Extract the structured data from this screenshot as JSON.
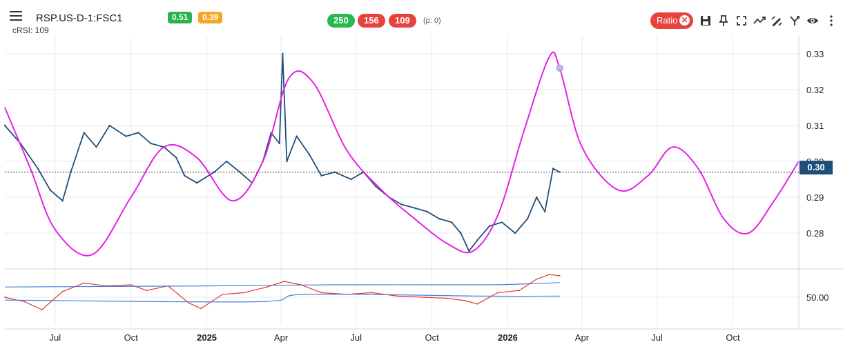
{
  "header": {
    "symbol": "RSP.US-D-1:FSC1",
    "indicator_label": "cRSI: 109",
    "badge_a": "0.51",
    "badge_b": "0.39",
    "count_a": "250",
    "count_b": "156",
    "count_c": "109",
    "p_note": "(p: 0)",
    "ratio_label": "Ratio",
    "ratio_close": "✕"
  },
  "colors": {
    "price_line": "#1f4e79",
    "cycle_line": "#e61fe6",
    "crsi_line": "#e03a2a",
    "band_line": "#4a7fd9",
    "badge_green": "#2bb24c",
    "badge_orange": "#f5a623",
    "pill_green": "#27b84f",
    "pill_red": "#e8423f"
  },
  "toolbar_icons": [
    "save-icon",
    "pin-icon",
    "fullscreen-icon",
    "trend-icon",
    "draw-icon",
    "fork-icon",
    "eye-icon"
  ],
  "chart_data": [
    {
      "type": "line",
      "title": "",
      "xlabel": "",
      "ylabel": "",
      "x_ticks": [
        "Jul",
        "Oct",
        "2025",
        "Apr",
        "Jul",
        "Oct",
        "2026",
        "Apr",
        "Jul",
        "Oct"
      ],
      "y_ticks": [
        "0.33",
        "0.32",
        "0.31",
        "0.30",
        "0.29",
        "0.28"
      ],
      "ylim": [
        0.27,
        0.335
      ],
      "current_value_label": "0.30",
      "current_value": 0.297,
      "series": [
        {
          "role": "price",
          "x": [
            "2024-05-01",
            "2024-05-20",
            "2024-06-10",
            "2024-06-25",
            "2024-07-10",
            "2024-07-20",
            "2024-08-05",
            "2024-08-20",
            "2024-09-05",
            "2024-09-25",
            "2024-10-10",
            "2024-10-25",
            "2024-11-10",
            "2024-11-25",
            "2024-12-05",
            "2024-12-20",
            "2025-01-10",
            "2025-01-25",
            "2025-02-10",
            "2025-02-25",
            "2025-03-10",
            "2025-03-20",
            "2025-03-30",
            "2025-04-03",
            "2025-04-08",
            "2025-04-20",
            "2025-05-05",
            "2025-05-20",
            "2025-06-05",
            "2025-06-25",
            "2025-07-10",
            "2025-07-25",
            "2025-08-10",
            "2025-08-25",
            "2025-09-10",
            "2025-09-25",
            "2025-10-10",
            "2025-10-25",
            "2025-11-05",
            "2025-11-15",
            "2025-11-25",
            "2025-12-10",
            "2025-12-25",
            "2026-01-10",
            "2026-01-25",
            "2026-02-05",
            "2026-02-15",
            "2026-02-25",
            "2026-03-05"
          ],
          "values": [
            0.31,
            0.305,
            0.298,
            0.292,
            0.289,
            0.297,
            0.308,
            0.304,
            0.31,
            0.307,
            0.308,
            0.305,
            0.304,
            0.301,
            0.296,
            0.294,
            0.297,
            0.3,
            0.297,
            0.294,
            0.3,
            0.308,
            0.305,
            0.33,
            0.3,
            0.307,
            0.302,
            0.296,
            0.297,
            0.295,
            0.297,
            0.293,
            0.29,
            0.288,
            0.287,
            0.286,
            0.284,
            0.283,
            0.28,
            0.275,
            0.278,
            0.282,
            0.283,
            0.28,
            0.284,
            0.29,
            0.286,
            0.298,
            0.297
          ]
        },
        {
          "role": "cycle",
          "x": [
            "2024-05-01",
            "2024-06-01",
            "2024-07-01",
            "2024-08-15",
            "2024-10-01",
            "2024-11-10",
            "2024-12-20",
            "2025-02-01",
            "2025-03-10",
            "2025-04-10",
            "2025-05-10",
            "2025-06-20",
            "2025-08-01",
            "2025-09-10",
            "2025-10-20",
            "2025-11-20",
            "2025-12-20",
            "2026-01-20",
            "2026-02-20",
            "2026-03-05",
            "2026-04-01",
            "2026-05-15",
            "2026-06-20",
            "2026-07-20",
            "2026-08-20",
            "2026-09-20",
            "2026-10-20",
            "2026-11-20",
            "2026-12-20"
          ],
          "values": [
            0.315,
            0.298,
            0.281,
            0.274,
            0.29,
            0.304,
            0.301,
            0.289,
            0.3,
            0.323,
            0.322,
            0.303,
            0.292,
            0.284,
            0.277,
            0.275,
            0.285,
            0.308,
            0.329,
            0.326,
            0.304,
            0.292,
            0.296,
            0.304,
            0.298,
            0.284,
            0.28,
            0.289,
            0.3
          ]
        }
      ]
    },
    {
      "type": "line",
      "title": "",
      "y_ticks": [
        "50.00"
      ],
      "ylim": [
        0,
        100
      ],
      "series": [
        {
          "role": "crsi",
          "x": [
            "2024-05-01",
            "2024-05-25",
            "2024-06-15",
            "2024-07-10",
            "2024-08-05",
            "2024-09-01",
            "2024-10-01",
            "2024-10-20",
            "2024-11-15",
            "2024-12-10",
            "2024-12-25",
            "2025-01-20",
            "2025-02-15",
            "2025-03-15",
            "2025-04-05",
            "2025-04-25",
            "2025-05-20",
            "2025-06-20",
            "2025-07-20",
            "2025-08-20",
            "2025-09-20",
            "2025-10-20",
            "2025-11-10",
            "2025-11-25",
            "2025-12-20",
            "2026-01-15",
            "2026-02-05",
            "2026-02-20",
            "2026-03-05"
          ],
          "values": [
            50,
            42,
            28,
            60,
            75,
            70,
            72,
            62,
            70,
            40,
            30,
            55,
            58,
            68,
            78,
            72,
            58,
            55,
            58,
            52,
            50,
            48,
            44,
            38,
            58,
            62,
            82,
            90,
            88
          ]
        },
        {
          "role": "upper_band",
          "x": [
            "2024-05-01",
            "2025-01-01",
            "2025-06-01",
            "2025-12-01",
            "2026-02-01",
            "2026-03-05"
          ],
          "values": [
            68,
            70,
            72,
            72,
            74,
            76
          ]
        },
        {
          "role": "lower_band",
          "x": [
            "2024-05-01",
            "2025-03-01",
            "2025-05-01",
            "2025-12-01",
            "2026-03-05"
          ],
          "values": [
            45,
            42,
            55,
            52,
            52
          ]
        }
      ]
    }
  ]
}
